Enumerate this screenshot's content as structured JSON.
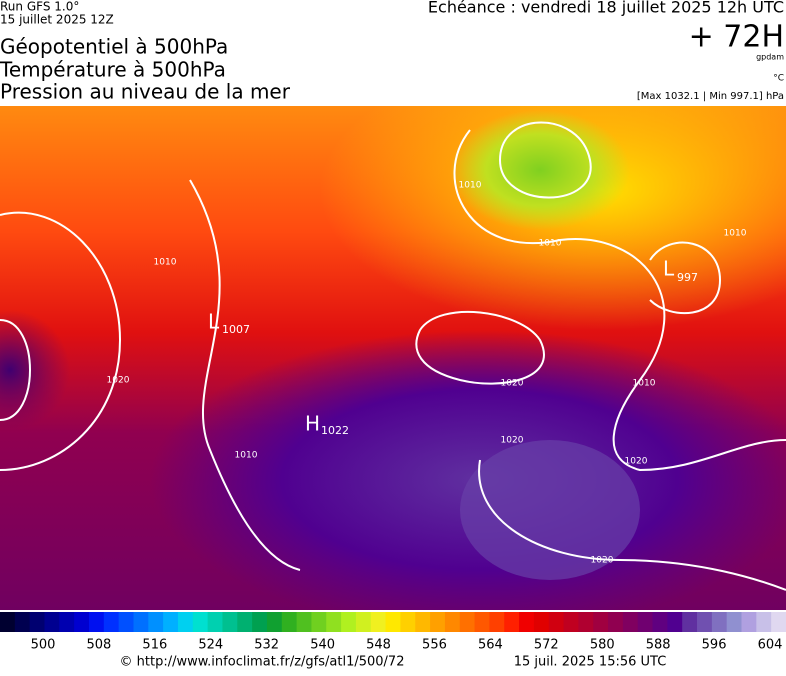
{
  "header": {
    "run": "Run GFS 1.0°",
    "run_date": "15 juillet 2025 12Z",
    "titles": [
      "Géopotentiel à 500hPa",
      "Température à 500hPa",
      "Pression au niveau de la mer"
    ],
    "valid": "Echéance : vendredi 18 juillet 2025 12h UTC",
    "lead": "+ 72H",
    "unit_geo": "gpdam",
    "unit_temp": "°C",
    "pressure_range": "[Max 1032.1 | Min 997.1] hPa"
  },
  "map": {
    "centers": [
      {
        "kind": "L",
        "value": "1007"
      },
      {
        "kind": "H",
        "value": "1022"
      },
      {
        "kind": "L",
        "value": "997"
      }
    ],
    "isobar_labels": [
      "1010",
      "1010",
      "1020",
      "1010",
      "1020",
      "1020",
      "1010",
      "1010",
      "1020",
      "1020",
      "1010"
    ]
  },
  "colorbar": {
    "labels": [
      "500",
      "508",
      "516",
      "524",
      "532",
      "540",
      "548",
      "556",
      "564",
      "572",
      "580",
      "588",
      "596",
      "604"
    ],
    "colors": [
      "#000030",
      "#000050",
      "#000070",
      "#000090",
      "#0000b0",
      "#0000d0",
      "#0010f0",
      "#0030ff",
      "#0050ff",
      "#0070ff",
      "#0090ff",
      "#00b0ff",
      "#00d0f0",
      "#00e0d0",
      "#00d0b0",
      "#00c090",
      "#00b070",
      "#00a050",
      "#10a030",
      "#30b020",
      "#50c020",
      "#70d020",
      "#90e020",
      "#b0f020",
      "#d0f020",
      "#f0f020",
      "#ffe800",
      "#ffd000",
      "#ffb800",
      "#ffa000",
      "#ff8800",
      "#ff7000",
      "#ff5800",
      "#ff4000",
      "#ff2000",
      "#f00000",
      "#e00000",
      "#d00010",
      "#c00020",
      "#b00030",
      "#a00040",
      "#900050",
      "#800060",
      "#700070",
      "#600080",
      "#500090",
      "#6030a0",
      "#7050b0",
      "#8070c0",
      "#9090d0",
      "#b0a0e0",
      "#c8c0e8",
      "#e0d8f0"
    ]
  },
  "footer": {
    "url": "© http://www.infoclimat.fr/z/gfs/atl1/500/72",
    "stamp": "15 juil. 2025 15:56 UTC"
  }
}
